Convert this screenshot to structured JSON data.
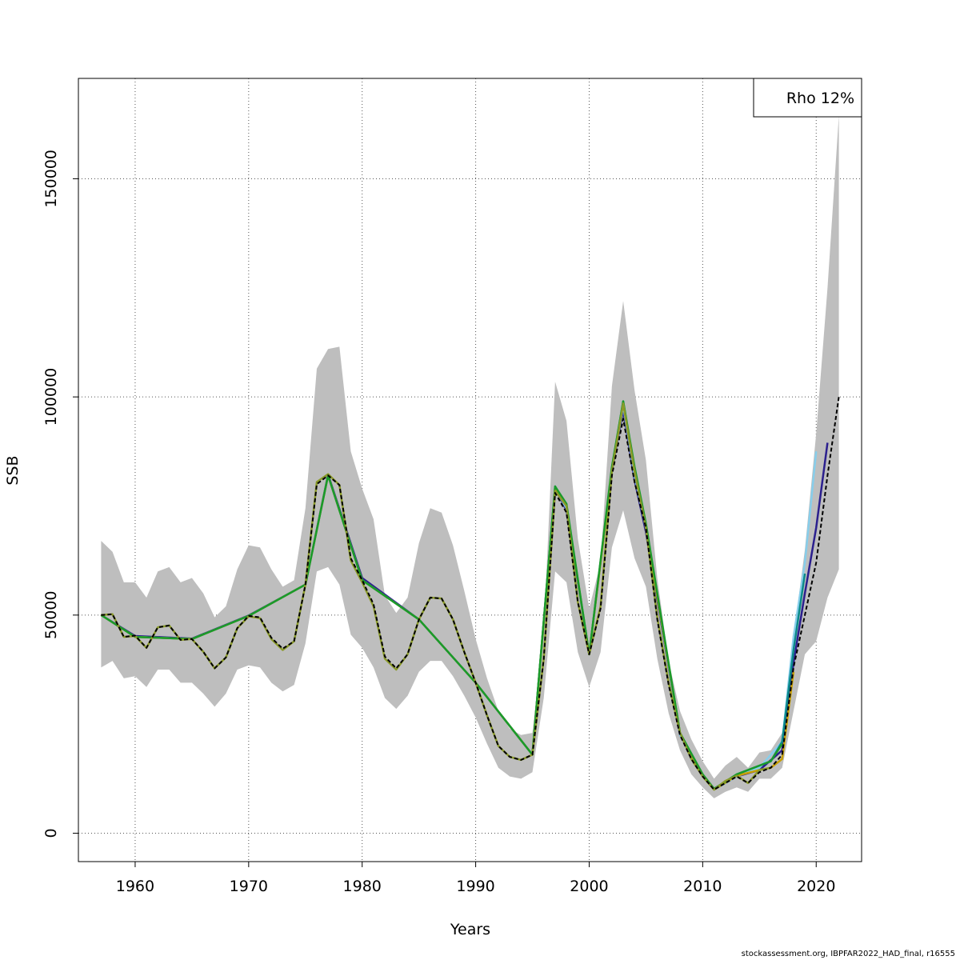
{
  "chart_data": {
    "type": "line",
    "title": "",
    "xlabel": "Years",
    "ylabel": "SSB",
    "xlim": [
      1955,
      2024
    ],
    "ylim": [
      -6500,
      173000
    ],
    "x_ticks": [
      1960,
      1970,
      1980,
      1990,
      2000,
      2010,
      2020
    ],
    "y_ticks": [
      0,
      50000,
      100000,
      150000
    ],
    "x_tick_labels": [
      "1960",
      "1970",
      "1980",
      "1990",
      "2000",
      "2010",
      "2020"
    ],
    "y_tick_labels": [
      "0",
      "50000",
      "100000",
      "150000"
    ],
    "grid": true,
    "legend": {
      "text": "Rho 12%",
      "placement": "top-right"
    },
    "confidence_band": {
      "x": [
        1957,
        1958,
        1959,
        1960,
        1961,
        1962,
        1963,
        1964,
        1965,
        1966,
        1967,
        1968,
        1969,
        1970,
        1971,
        1972,
        1973,
        1974,
        1975,
        1976,
        1977,
        1978,
        1979,
        1980,
        1981,
        1982,
        1983,
        1984,
        1985,
        1986,
        1987,
        1988,
        1989,
        1990,
        1991,
        1992,
        1993,
        1994,
        1995,
        1996,
        1997,
        1998,
        1999,
        2000,
        2001,
        2002,
        2003,
        2004,
        2005,
        2006,
        2007,
        2008,
        2009,
        2010,
        2011,
        2012,
        2013,
        2014,
        2015,
        2016,
        2017,
        2018,
        2019,
        2020,
        2021,
        2022
      ],
      "upper": [
        67000,
        64500,
        57500,
        57500,
        54000,
        60000,
        61000,
        57500,
        58500,
        55000,
        49500,
        52000,
        60500,
        66000,
        65500,
        60500,
        56500,
        58000,
        74500,
        106500,
        111000,
        111500,
        87500,
        79000,
        72000,
        54500,
        50500,
        54000,
        66500,
        74500,
        73500,
        66000,
        55500,
        44500,
        35500,
        28000,
        24000,
        22500,
        23000,
        46000,
        103500,
        94500,
        67500,
        51500,
        62000,
        102500,
        122000,
        101500,
        85500,
        58500,
        39500,
        28000,
        21500,
        16500,
        12500,
        15500,
        17500,
        15000,
        18500,
        19000,
        23000,
        45000,
        65000,
        91500,
        125000,
        164500
      ],
      "lower": [
        38000,
        39500,
        35500,
        36000,
        33500,
        37500,
        37500,
        34500,
        34500,
        32000,
        29000,
        32000,
        37500,
        38500,
        38000,
        34500,
        32500,
        34000,
        43500,
        60000,
        61000,
        57000,
        45500,
        42500,
        38000,
        31000,
        28500,
        31500,
        37000,
        39500,
        39500,
        36000,
        31500,
        26500,
        20500,
        15000,
        13000,
        12500,
        14000,
        31000,
        60000,
        57500,
        41500,
        33500,
        41500,
        65500,
        74000,
        63000,
        56500,
        40000,
        27500,
        19000,
        13500,
        10500,
        8000,
        9500,
        10500,
        9500,
        12500,
        12500,
        15000,
        28000,
        41000,
        44000,
        54000,
        60500
      ]
    },
    "series": [
      {
        "color": "#000000",
        "dash": true,
        "x": [
          1957,
          1958,
          1959,
          1960,
          1961,
          1962,
          1963,
          1964,
          1965,
          1966,
          1967,
          1968,
          1969,
          1970,
          1971,
          1972,
          1973,
          1974,
          1975,
          1976,
          1977,
          1978,
          1979,
          1980,
          1981,
          1982,
          1983,
          1984,
          1985,
          1986,
          1987,
          1988,
          1989,
          1990,
          1991,
          1992,
          1993,
          1994,
          1995,
          1996,
          1997,
          1998,
          1999,
          2000,
          2001,
          2002,
          2003,
          2004,
          2005,
          2006,
          2007,
          2008,
          2009,
          2010,
          2011,
          2012,
          2013,
          2014,
          2015,
          2016,
          2017,
          2018,
          2019,
          2020,
          2021,
          2022
        ],
        "values": [
          50000,
          50200,
          45000,
          45300,
          42500,
          47200,
          47600,
          44300,
          44500,
          41600,
          37800,
          40300,
          47000,
          49800,
          49500,
          44800,
          42300,
          44000,
          57000,
          80000,
          82000,
          79800,
          63000,
          58000,
          52500,
          40500,
          37800,
          41000,
          49000,
          54000,
          53800,
          49000,
          41500,
          34500,
          27000,
          20000,
          17500,
          16800,
          18000,
          40000,
          78000,
          73500,
          53000,
          41000,
          51500,
          82000,
          95000,
          80500,
          70000,
          49000,
          34000,
          22500,
          17000,
          13000,
          10000,
          11500,
          13000,
          11500,
          14000,
          15000,
          18000,
          38000,
          50000,
          62000,
          82000,
          100000
        ]
      },
      {
        "color": "#2b1f8e",
        "dash": false,
        "x": [
          1957,
          1960,
          1965,
          1970,
          1975,
          1977,
          1980,
          1985,
          1990,
          1995,
          1997,
          1998,
          2000,
          2002,
          2003,
          2004,
          2005,
          2008,
          2010,
          2011,
          2013,
          2015,
          2017,
          2018,
          2019,
          2020,
          2021
        ],
        "values": [
          50000,
          45200,
          44600,
          49900,
          57000,
          82200,
          58500,
          49000,
          34500,
          18000,
          79000,
          74000,
          41000,
          83000,
          97000,
          81000,
          69000,
          22500,
          13000,
          10000,
          13000,
          14500,
          19000,
          39000,
          55000,
          70000,
          89500
        ]
      },
      {
        "color": "#87ceeb",
        "dash": false,
        "x": [
          1957,
          1960,
          1965,
          1970,
          1975,
          1977,
          1980,
          1985,
          1990,
          1995,
          1997,
          1998,
          2000,
          2002,
          2003,
          2004,
          2005,
          2008,
          2010,
          2011,
          2013,
          2015,
          2017,
          2018,
          2019,
          2020
        ],
        "values": [
          50000,
          45000,
          44500,
          49800,
          57000,
          82000,
          58000,
          49000,
          34500,
          18000,
          79000,
          74500,
          41000,
          83000,
          98000,
          82000,
          70000,
          22500,
          13000,
          10000,
          13000,
          15000,
          21000,
          45000,
          62000,
          87500
        ]
      },
      {
        "color": "#0b8a8a",
        "dash": false,
        "x": [
          1957,
          1960,
          1965,
          1970,
          1975,
          1977,
          1980,
          1985,
          1990,
          1995,
          1997,
          1998,
          2000,
          2002,
          2003,
          2004,
          2005,
          2008,
          2010,
          2011,
          2013,
          2015,
          2016,
          2017,
          2018,
          2019
        ],
        "values": [
          50000,
          45000,
          44500,
          49800,
          57000,
          82000,
          58000,
          49000,
          34500,
          18000,
          79500,
          75000,
          41000,
          83500,
          99000,
          83000,
          70000,
          23000,
          13200,
          10200,
          13500,
          15500,
          16500,
          21000,
          42000,
          59500
        ]
      },
      {
        "color": "#c8a000",
        "dash": false,
        "x": [
          1957,
          1960,
          1965,
          1970,
          1975,
          1977,
          1980,
          1985,
          1990,
          1995,
          1997,
          1998,
          2000,
          2002,
          2003,
          2004,
          2005,
          2008,
          2010,
          2011,
          2013,
          2015,
          2016,
          2017,
          2018
        ],
        "values": [
          50000,
          45000,
          44500,
          49800,
          57000,
          82000,
          58000,
          49000,
          34500,
          18000,
          79000,
          75000,
          41000,
          83000,
          98500,
          83000,
          70000,
          23000,
          13000,
          10000,
          13200,
          14500,
          15000,
          17000,
          37000
        ]
      },
      {
        "color": "#1a9a2a",
        "dash": false,
        "x": [
          1957,
          1960,
          1965,
          1970,
          1975,
          1977,
          1980,
          1985,
          1990,
          1995,
          1997,
          1998,
          2000,
          2002,
          2003,
          2004,
          2005,
          2008,
          2010,
          2011,
          2013,
          2015,
          2016,
          2017
        ],
        "values": [
          50000,
          45000,
          44500,
          49800,
          57000,
          82000,
          58000,
          49000,
          34500,
          18000,
          79500,
          75500,
          41000,
          84000,
          99000,
          84000,
          71000,
          23000,
          13500,
          10200,
          13500,
          15500,
          16500,
          20500
        ]
      },
      {
        "color": "#8a9a2a",
        "dash": false,
        "x": [
          1957,
          1958,
          1959,
          1960,
          1961,
          1962,
          1963,
          1964,
          1965,
          1966,
          1967,
          1968,
          1969,
          1970,
          1971,
          1972,
          1973,
          1974,
          1975,
          1976,
          1977,
          1978,
          1979,
          1980,
          1981,
          1982,
          1983,
          1984,
          1985,
          1986,
          1987,
          1988,
          1989,
          1990,
          1991,
          1992,
          1993,
          1994,
          1995,
          1996,
          1997,
          1998,
          1999,
          2000,
          2001,
          2002,
          2003,
          2004,
          2005,
          2006,
          2007,
          2008,
          2009,
          2010,
          2011,
          2012,
          2013,
          2014,
          2015,
          2016
        ],
        "values": [
          50000,
          50200,
          45000,
          45200,
          42500,
          47200,
          47600,
          44300,
          44500,
          41600,
          37800,
          40300,
          47000,
          49700,
          49300,
          44500,
          42000,
          44000,
          57000,
          80500,
          82300,
          79800,
          62500,
          57500,
          52000,
          40000,
          37500,
          41000,
          49000,
          54000,
          53800,
          49000,
          41500,
          34500,
          27000,
          20000,
          17500,
          16800,
          18000,
          40000,
          78500,
          75000,
          53000,
          41000,
          52000,
          83000,
          98500,
          83000,
          70000,
          49500,
          34500,
          23000,
          17000,
          13000,
          10000,
          12000,
          13200,
          11500,
          14500,
          15000
        ]
      }
    ]
  },
  "footer": "stockassessment.org, IBPFAR2022_HAD_final, r16555"
}
